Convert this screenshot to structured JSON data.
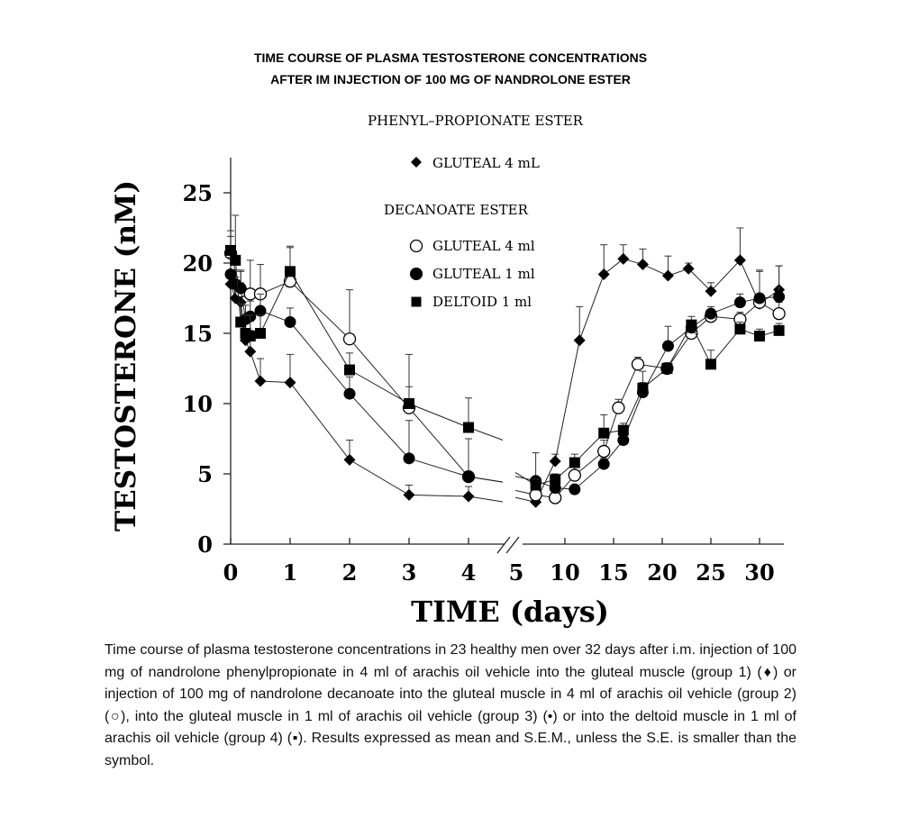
{
  "header": {
    "title_line1": "TIME COURSE OF PLASMA TESTOSTERONE CONCENTRATIONS",
    "title_line2": "AFTER IM INJECTION OF 100 MG OF NANDROLONE ESTER"
  },
  "chart_data": {
    "type": "line",
    "ylabel": "TESTOSTERONE (nM)",
    "xlabel": "TIME (days)",
    "ylim": [
      0,
      27
    ],
    "yticks": [
      "0",
      "5",
      "10",
      "15",
      "20",
      "25"
    ],
    "xticks_left": [
      "0",
      "1",
      "2",
      "3",
      "4",
      "5"
    ],
    "xticks_right": [
      "10",
      "15",
      "20",
      "25",
      "30"
    ],
    "axis_break": "between 5 and 10 days",
    "legend_groups": [
      {
        "heading": "PHENYL–PROPIONATE ESTER",
        "entries": [
          {
            "symbol": "filled-diamond",
            "label": "GLUTEAL 4 mL"
          }
        ]
      },
      {
        "heading": "DECANOATE ESTER",
        "entries": [
          {
            "symbol": "open-circle",
            "label": "GLUTEAL 4 ml"
          },
          {
            "symbol": "filled-circle",
            "label": "GLUTEAL 1 ml"
          },
          {
            "symbol": "filled-square",
            "label": "DELTOID 1 ml"
          }
        ]
      }
    ],
    "series": [
      {
        "name": "Phenylpropionate gluteal 4 mL",
        "symbol": "filled-diamond",
        "left": {
          "x": [
            0,
            0.08,
            0.17,
            0.25,
            0.33,
            0.5,
            1,
            2,
            3,
            4
          ],
          "y": [
            18.5,
            17.5,
            17.2,
            14.5,
            13.7,
            11.6,
            11.5,
            6.0,
            3.5,
            3.4
          ],
          "sem": [
            1.5,
            1.5,
            1.4,
            1.5,
            1.5,
            1.6,
            2.0,
            1.4,
            0.7,
            0.7
          ]
        },
        "right": {
          "x": [
            7,
            9,
            11.5,
            14,
            16,
            18,
            20.6,
            22.7,
            25,
            28,
            30,
            32
          ],
          "y": [
            3.0,
            5.9,
            14.5,
            19.2,
            20.3,
            19.9,
            19.1,
            19.6,
            18.0,
            20.2,
            17.1,
            18.1
          ],
          "sem": [
            0.5,
            0.5,
            2.4,
            2.1,
            1.0,
            1.1,
            1.4,
            0.4,
            0.6,
            2.3,
            2.3,
            1.7
          ]
        }
      },
      {
        "name": "Decanoate gluteal 4 ml",
        "symbol": "open-circle",
        "left": {
          "x": [
            0,
            0.17,
            0.33,
            0.5,
            1,
            2,
            3,
            4
          ],
          "y": [
            20.7,
            18.0,
            17.8,
            17.8,
            18.7,
            14.6,
            9.7,
            4.8
          ],
          "sem": [
            1.6,
            1.5,
            2.4,
            2.1,
            2.4,
            3.5,
            3.8,
            2.7
          ]
        },
        "right": {
          "x": [
            7,
            9,
            11,
            14,
            15.5,
            17.5,
            20.5,
            23,
            25,
            28,
            30,
            32
          ],
          "y": [
            3.5,
            3.3,
            4.9,
            6.6,
            9.7,
            12.8,
            12.5,
            15.0,
            16.2,
            16.0,
            17.2,
            16.4
          ],
          "sem": [
            1.0,
            0.5,
            0.6,
            0.8,
            0.6,
            0.5,
            0.4,
            0.3,
            0.5,
            0.5,
            0.6,
            0.8
          ]
        }
      },
      {
        "name": "Decanoate gluteal 1 ml",
        "symbol": "filled-circle",
        "left": {
          "x": [
            0,
            0.08,
            0.17,
            0.25,
            0.33,
            0.5,
            1,
            2,
            3,
            4
          ],
          "y": [
            19.2,
            18.5,
            18.2,
            16.0,
            16.2,
            16.6,
            15.8,
            10.7,
            6.1,
            4.8
          ],
          "sem": [
            1.2,
            1.0,
            1.2,
            1.0,
            1.1,
            1.2,
            1.0,
            1.2,
            2.7,
            2.7
          ]
        },
        "right": {
          "x": [
            7,
            9,
            11,
            14,
            16,
            18,
            20.6,
            23,
            25,
            28,
            30,
            32
          ],
          "y": [
            4.5,
            4.0,
            3.9,
            5.7,
            7.4,
            10.8,
            14.1,
            15.4,
            16.4,
            17.2,
            17.5,
            17.6
          ],
          "sem": [
            2.0,
            0.4,
            0.3,
            0.4,
            0.4,
            1.5,
            1.4,
            0.5,
            0.5,
            0.6,
            2.0,
            2.2
          ]
        }
      },
      {
        "name": "Decanoate deltoid 1 ml",
        "symbol": "filled-square",
        "left": {
          "x": [
            0,
            0.08,
            0.17,
            0.25,
            0.33,
            0.5,
            1,
            2,
            3,
            4
          ],
          "y": [
            20.9,
            20.2,
            15.8,
            15.0,
            14.8,
            15.0,
            19.4,
            12.4,
            10.0,
            8.3
          ],
          "sem": [
            1.0,
            3.2,
            1.3,
            1.3,
            1.5,
            1.3,
            1.8,
            1.2,
            1.2,
            2.1
          ]
        },
        "right": {
          "x": [
            7,
            9,
            11,
            14,
            16,
            18,
            20.5,
            23,
            25,
            28,
            30,
            32
          ],
          "y": [
            4.2,
            4.6,
            5.8,
            7.9,
            8.1,
            11.1,
            12.5,
            15.6,
            12.8,
            15.3,
            14.8,
            15.2
          ],
          "sem": [
            0.4,
            0.4,
            0.6,
            1.3,
            0.5,
            0.4,
            0.4,
            0.6,
            1.0,
            0.5,
            0.5,
            0.5
          ]
        }
      }
    ]
  },
  "caption": "Time course of plasma testosterone concentrations in 23 healthy men over 32 days after i.m. injection of 100 mg of nandrolone phenylpropionate in 4 ml of arachis oil vehicle into the gluteal muscle (group 1) (♦) or injection of 100 mg of nandrolone decanoate into the gluteal muscle in 4 ml of arachis oil vehicle (group 2) (○), into the gluteal muscle in 1 ml of arachis oil vehicle (group 3) (•) or into the deltoid muscle in 1 ml of arachis oil vehicle (group 4) (▪). Results expressed as mean and S.E.M., unless the S.E. is smaller than the symbol."
}
